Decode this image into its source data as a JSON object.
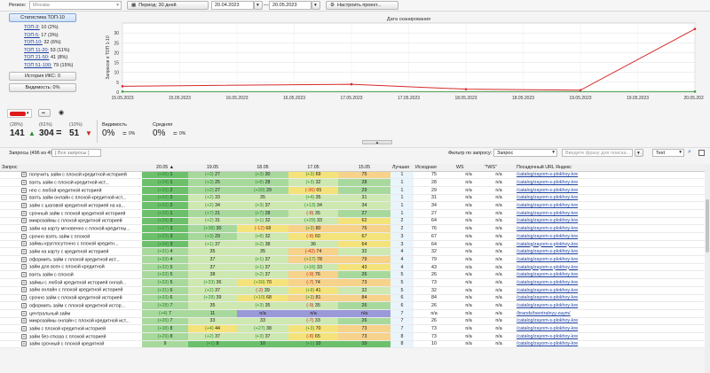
{
  "toolbar": {
    "region_label": "Регион:",
    "region_value": "Москва",
    "period_label": "Период: 30 дней",
    "date_from": "20.04.2023",
    "date_to": "20.05.2023",
    "settings_label": "Настроить проект..."
  },
  "left_panel": {
    "stats_button": "Статистика ТОП-10",
    "stats": [
      {
        "label": "ТОП-3:",
        "value": "10 (2%)"
      },
      {
        "label": "ТОП-5:",
        "value": "17 (3%)"
      },
      {
        "label": "ТОП-10:",
        "value": "32 (6%)"
      },
      {
        "label": "ТОП 11-20:",
        "value": "53 (11%)"
      },
      {
        "label": "ТОП 21-50:",
        "value": "41 (8%)"
      },
      {
        "label": "ТОП 51-100:",
        "value": "79 (15%)"
      }
    ],
    "iks_history": "История ИКС: 0",
    "visibility": "Видимость: 0%"
  },
  "chart_data": {
    "type": "line",
    "title": "Дата сканирования",
    "ylabel": "Запросов в ТОП 1-10",
    "categories": [
      "15.05.2023",
      "15.05.2023",
      "16.05.2023",
      "16.05.2023",
      "17.05.2023",
      "17.05.2023",
      "18.05.2023",
      "18.05.2023",
      "19.05.2023",
      "19.05.2023",
      "20.05.2023"
    ],
    "ylim": [
      0,
      35
    ],
    "yticks": [
      0,
      5,
      10,
      15,
      20,
      25,
      30
    ],
    "grid": true,
    "series": [
      {
        "color": "#d42a2a",
        "points": [
          [
            0,
            3
          ],
          [
            4,
            4
          ],
          [
            6,
            1.5
          ],
          [
            8,
            1
          ],
          [
            10,
            32
          ]
        ]
      },
      {
        "color": "#3c9a3c",
        "points": [
          [
            0,
            0.3
          ],
          [
            10,
            0.3
          ]
        ]
      }
    ]
  },
  "summary": {
    "engine_label": "Яндекс",
    "col1_pct": "(28%)",
    "col1_value": "141",
    "col2_pct": "(61%)",
    "col2_value": "304",
    "col3_pct": "(10%)",
    "col3_value": "51",
    "visibility_label": "Видимость",
    "visibility_value": "0%",
    "avg_label": "Средняя",
    "avg_value": "0%",
    "eq_sign": "=",
    "zero": "0%"
  },
  "filters": {
    "queries_label": "Запросы (496 из 496)",
    "group_value": "[ Все запросы ]",
    "filter_label": "Фильтр по запросу:",
    "filter_field": "Запрос",
    "phrase_placeholder": "Введите фразу для поиска...",
    "text_value": "Text"
  },
  "table": {
    "headers": [
      "Запрос",
      "20.05 ▲",
      "19.05",
      "18.05",
      "17.05",
      "15.05",
      "Лучшая",
      "Исходная",
      "WS",
      "\"!WS\"",
      "Посадочный URL Яндекс"
    ],
    "rows": [
      {
        "q": "получить займ с плохой кредитной историей",
        "c": [
          "(+26) 1",
          "(+3) 27",
          "(+3) 30",
          "(+3) 69",
          "75"
        ],
        "best": "1",
        "src": "75",
        "ws": "n/a",
        "wsq": "n/a",
        "url": "/catalog/zayom-s-plokhoy-kre"
      },
      {
        "q": "взять займ с плохой кредитной ист...",
        "c": [
          "(+24) 1",
          "(+3) 25",
          "(+8) 28",
          "(+3) 32",
          "28"
        ],
        "best": "1",
        "src": "28",
        "ws": "n/a",
        "wsq": "n/a",
        "url": "/catalog/zayom-s-plokhoy-kre"
      },
      {
        "q": "нпо с любой кредитной историей",
        "c": [
          "(+25) 2",
          "(+2) 27",
          "(+30) 29",
          "(-36) 65",
          "29"
        ],
        "best": "1",
        "src": "29",
        "ws": "n/a",
        "wsq": "n/a",
        "url": "/catalog/zayom-s-plokhoy-kre"
      },
      {
        "q": "взять займ онлайн с плохой кредитной ист...",
        "c": [
          "(+33) 2",
          "(+2) 33",
          "35",
          "(+4) 35",
          "31"
        ],
        "best": "1",
        "src": "31",
        "ws": "n/a",
        "wsq": "n/a",
        "url": "/catalog/zayom-s-plokhoy-kre"
      },
      {
        "q": "займ с шаговой кредитной историей на ка...",
        "c": [
          "(+32) 2",
          "(+2) 34",
          "(+3) 37",
          "(+13) 34",
          "34"
        ],
        "best": "1",
        "src": "34",
        "ws": "n/a",
        "wsq": "n/a",
        "url": "/catalog/zayom-s-plokhoy-kre"
      },
      {
        "q": "срочный займ с плохой кредитной историей",
        "c": [
          "(+20) 1",
          "(+7) 21",
          "(+7) 28",
          "(-8) 35",
          "27"
        ],
        "best": "1",
        "src": "27",
        "ws": "n/a",
        "wsq": "n/a",
        "url": "/catalog/zayom-s-plokhoy-kre"
      },
      {
        "q": "микрозаймы с плохой кредитной историей",
        "c": [
          "(+29) 2",
          "(+2) 31",
          "(+1) 32",
          "(+29) 33",
          "62"
        ],
        "best": "2",
        "src": "64",
        "ws": "n/a",
        "wsq": "n/a",
        "url": "/catalog/zayom-s-plokhoy-kre"
      },
      {
        "q": "займ на карту мгновенно с плохой кредитны...",
        "c": [
          "(+27) 3",
          "(+38) 30",
          "(-12) 68",
          "(+3) 80",
          "76"
        ],
        "best": "2",
        "src": "76",
        "ws": "n/a",
        "wsq": "n/a",
        "url": "/catalog/zayom-s-plokhoy-kre"
      },
      {
        "q": "срочно взять займ с плохой",
        "c": [
          "(+23) 3",
          "(+3) 29",
          "(+8) 32",
          "(-8) 60",
          "67"
        ],
        "best": "3",
        "src": "67",
        "ws": "n/a",
        "wsq": "n/a",
        "url": "/catalog/zayom-s-plokhoy-kre"
      },
      {
        "q": "займы круглосуточно с плохой кредитн...",
        "c": [
          "(+34) 3",
          "(+1) 37",
          "(+2) 38",
          "36",
          "64"
        ],
        "best": "3",
        "src": "64",
        "ws": "n/a",
        "wsq": "n/a",
        "url": "/catalog/zayom-s-plokhoy-kre"
      },
      {
        "q": "займ на карту с кредитной историей",
        "c": [
          "(+31) 4",
          "35",
          "35",
          "(-42) 74",
          "32"
        ],
        "best": "4",
        "src": "32",
        "ws": "n/a",
        "wsq": "n/a",
        "url": "/catalog/zayom-s-plokhoy-kre"
      },
      {
        "q": "оформить займ с плохой кредитной ист...",
        "c": [
          "(+33) 4",
          "37",
          "(+1) 37",
          "(+17) 78",
          "79"
        ],
        "best": "4",
        "src": "79",
        "ws": "n/a",
        "wsq": "n/a",
        "url": "/catalog/zayom-s-plokhoy-kre"
      },
      {
        "q": "займ для всех с плохой кредитной",
        "c": [
          "(+32) 5",
          "37",
          "(+1) 37",
          "(+16) 33",
          "43"
        ],
        "best": "4",
        "src": "43",
        "ws": "n/a",
        "wsq": "n/a",
        "url": "/catalog/zayom-s-plokhoy-kre"
      },
      {
        "q": "взять займ с плохой",
        "c": [
          "(+33) 5",
          "38",
          "(+2) 37",
          "(-9) 76",
          "26"
        ],
        "best": "5",
        "src": "26",
        "ws": "n/a",
        "wsq": "n/a",
        "url": "/catalog/zayom-s-plokhoy-kre"
      },
      {
        "q": "займы с любой кредитной историей онлай...",
        "c": [
          "(+33) 5",
          "(+33) 36",
          "(+30) 70",
          "(-7) 74",
          "73"
        ],
        "best": "5",
        "src": "73",
        "ws": "n/a",
        "wsq": "n/a",
        "url": "/catalog/zayom-s-plokhoy-kre"
      },
      {
        "q": "займ онлайн с плохой кредитной историей",
        "c": [
          "(+31) 6",
          "(+2) 37",
          "(-2) 39",
          "(+9) 41",
          "32"
        ],
        "best": "5",
        "src": "32",
        "ws": "n/a",
        "wsq": "n/a",
        "url": "/catalog/zayom-s-plokhoy-kre"
      },
      {
        "q": "срочно займ с плохой кредитной историей",
        "c": [
          "(+33) 6",
          "(+28) 39",
          "(+10) 68",
          "(+3) 81",
          "84"
        ],
        "best": "6",
        "src": "84",
        "ws": "n/a",
        "wsq": "n/a",
        "url": "/catalog/zayom-s-plokhoy-kre"
      },
      {
        "q": "оформить займ с плохой кредитной истор...",
        "c": [
          "(+28) 7",
          "35",
          "(+3) 35",
          "(-9) 35",
          "26"
        ],
        "best": "6",
        "src": "26",
        "ws": "n/a",
        "wsq": "n/a",
        "url": "/catalog/zayom-s-plokhoy-kre"
      },
      {
        "q": "центральный займ",
        "c": [
          "(+4) 7",
          "11",
          "n/a",
          "n/a",
          "n/a"
        ],
        "best": "7",
        "src": "n/a",
        "ws": "n/a",
        "wsq": "n/a",
        "url": "/brands/tsentralnyy-zaym/"
      },
      {
        "q": "микрозаймы онлайн с плохой кредитной ист...",
        "c": [
          "(+26) 7",
          "33",
          "33",
          "(-7) 33",
          "26"
        ],
        "best": "7",
        "src": "26",
        "ws": "n/a",
        "wsq": "n/a",
        "url": "/catalog/zayom-s-plokhoy-kre"
      },
      {
        "q": "займ с плохой кредитной историей",
        "c": [
          "(+38) 8",
          "(+4) 44",
          "(+27) 38",
          "(+3) 70",
          "73"
        ],
        "best": "7",
        "src": "73",
        "ws": "n/a",
        "wsq": "n/a",
        "url": "/catalog/zayom-s-plokhoy-kre"
      },
      {
        "q": "займ без отказа с плохой историей",
        "c": [
          "(+29) 8",
          "(+2) 37",
          "(+3) 37",
          "(-8) 65",
          "73"
        ],
        "best": "8",
        "src": "73",
        "ws": "n/a",
        "wsq": "n/a",
        "url": "/catalog/zayom-s-plokhoy-kre"
      },
      {
        "q": "займ срочный с плохой кредитной",
        "c": [
          "9",
          "(+1) 9",
          "10",
          "(+1) 10",
          "10"
        ],
        "best": "8",
        "src": "10",
        "ws": "n/a",
        "wsq": "n/a",
        "url": "/catalog/zayom-s-plokhoy-kre"
      }
    ]
  },
  "colors": {
    "pos_green_dark": "#6cc06c",
    "pos_green": "#a8d99c",
    "pos_green_light": "#cde8b0",
    "yellow": "#f4e37a",
    "orange": "#f6d28a",
    "na_purple": "#9b9ad8",
    "best_bg": "#eaf4fb"
  }
}
